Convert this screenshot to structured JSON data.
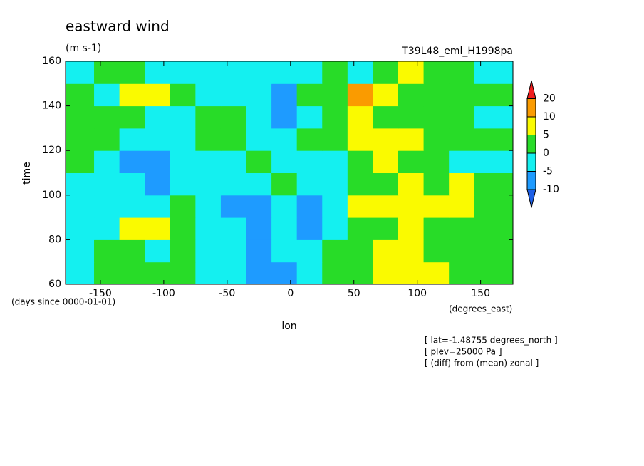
{
  "chart_data": {
    "type": "contourf",
    "title": "eastward wind",
    "units": "(m s-1)",
    "run": "T39L48_eml_H1998pa",
    "ylabel": "time",
    "xlabel": "lon",
    "y_units": "(days since 0000-01-01)",
    "x_units": "(degrees_east)",
    "annotations": [
      "[ lat=-1.48755 degrees_north ]",
      "[ plev=25000 Pa ]",
      "[ (diff) from (mean) zonal ]"
    ],
    "xlim": [
      -177.5,
      175.5
    ],
    "xticks": [
      -150,
      -100,
      -50,
      0,
      50,
      100,
      150
    ],
    "ylim": [
      60,
      160
    ],
    "yticks": [
      60,
      80,
      100,
      120,
      140,
      160
    ],
    "levels": [
      -10,
      -5,
      0,
      5,
      10,
      20
    ],
    "colors": [
      "#1e5fe6",
      "#1e9bff",
      "#14f0f0",
      "#28dc28",
      "#fafa00",
      "#fa9b00",
      "#f01e1e"
    ],
    "x": [
      -165,
      -145,
      -125,
      -105,
      -85,
      -65,
      -45,
      -25,
      -5,
      15,
      35,
      55,
      75,
      95,
      115,
      135,
      155
    ],
    "y": [
      65,
      75,
      85,
      95,
      105,
      115,
      125,
      135,
      145,
      155
    ],
    "z": [
      [
        -2,
        1,
        2,
        3,
        2,
        -1,
        -3,
        -6,
        -8,
        -2,
        2,
        4,
        6,
        7,
        6,
        4,
        2
      ],
      [
        -2,
        0,
        1,
        -1,
        3,
        -2,
        -5,
        -6,
        -4,
        -3,
        1,
        3,
        7,
        5,
        4,
        3,
        1
      ],
      [
        -3,
        -2,
        6,
        8,
        2,
        -3,
        -4,
        -6,
        -3,
        -7,
        -4,
        2,
        4,
        7,
        3,
        2,
        1
      ],
      [
        -1,
        -3,
        -4,
        -1,
        1,
        -3,
        -6,
        -8,
        -2,
        -6,
        -5,
        6,
        8,
        6,
        5,
        7,
        3
      ],
      [
        -2,
        -4,
        -5,
        -6,
        -4,
        -3,
        -5,
        -3,
        2,
        -5,
        -3,
        2,
        3,
        6,
        3,
        5,
        2
      ],
      [
        1,
        -3,
        -6,
        -8,
        -5,
        -2,
        -1,
        1,
        -3,
        -4,
        -2,
        1,
        7,
        3,
        1,
        -2,
        -1
      ],
      [
        1,
        2,
        -2,
        -3,
        -1,
        2,
        4,
        -2,
        -4,
        1,
        2,
        6,
        7,
        5,
        3,
        1,
        2
      ],
      [
        3,
        1,
        2,
        -3,
        -2,
        1,
        2,
        -3,
        -7,
        -2,
        2,
        8,
        3,
        2,
        4,
        2,
        -1
      ],
      [
        1,
        -1,
        6,
        5,
        2,
        -2,
        -1,
        -2,
        -6,
        1,
        3,
        10,
        6,
        2,
        2,
        4,
        1
      ],
      [
        -2,
        1,
        2,
        -1,
        -4,
        -2,
        -3,
        -4,
        -5,
        -2,
        3,
        -1,
        2,
        6,
        1,
        4,
        -3
      ]
    ]
  }
}
